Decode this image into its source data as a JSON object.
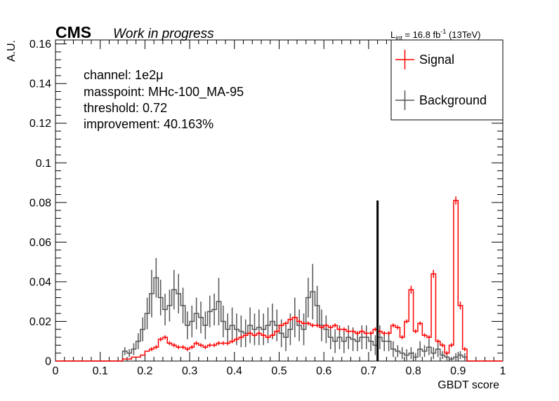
{
  "header": {
    "experiment": "CMS",
    "status": "Work in progress",
    "lumi_prefix": "L",
    "lumi_sub": "int",
    "lumi_value": " = 16.8 fb",
    "lumi_sup": "-1",
    "lumi_energy": " (13TeV)"
  },
  "info": {
    "channel": "channel: 1e2μ",
    "masspoint": "masspoint: MHc-100_MA-95",
    "threshold": "threshold: 0.72",
    "improvement": "improvement: 40.163%"
  },
  "colors": {
    "signal": "#ff0000",
    "background": "#555555",
    "threshold_line": "#000000"
  },
  "chart_data": {
    "type": "histogram",
    "xlabel": "GBDT score",
    "ylabel": "A.U.",
    "xlim": [
      0,
      1
    ],
    "ylim": [
      0,
      0.162
    ],
    "x_ticks": [
      "0",
      "0.1",
      "0.2",
      "0.3",
      "0.4",
      "0.5",
      "0.6",
      "0.7",
      "0.8",
      "0.9",
      "1"
    ],
    "y_ticks": [
      "0",
      "0.02",
      "0.04",
      "0.06",
      "0.08",
      "0.1",
      "0.12",
      "0.14",
      "0.16"
    ],
    "threshold": {
      "x": 0.72,
      "y_top": 0.081
    },
    "legend": {
      "position": "top-right",
      "entries": [
        "Signal",
        "Background"
      ]
    },
    "series": [
      {
        "name": "Signal",
        "x_start": 0.15,
        "bin_width": 0.01,
        "values": [
          0.001,
          0.001,
          0.002,
          0.002,
          0.003,
          0.005,
          0.006,
          0.007,
          0.011,
          0.012,
          0.009,
          0.008,
          0.007,
          0.007,
          0.006,
          0.007,
          0.009,
          0.008,
          0.007,
          0.008,
          0.008,
          0.009,
          0.009,
          0.009,
          0.01,
          0.011,
          0.012,
          0.013,
          0.014,
          0.013,
          0.014,
          0.013,
          0.012,
          0.013,
          0.015,
          0.018,
          0.019,
          0.021,
          0.022,
          0.02,
          0.019,
          0.019,
          0.018,
          0.018,
          0.017,
          0.018,
          0.017,
          0.018,
          0.016,
          0.016,
          0.015,
          0.015,
          0.014,
          0.015,
          0.014,
          0.014,
          0.016,
          0.015,
          0.014,
          0.014,
          0.018,
          0.017,
          0.012,
          0.02,
          0.036,
          0.015,
          0.019,
          0.013,
          0.012,
          0.044,
          0.01,
          0.008,
          0.004,
          0.008,
          0.081,
          0.028,
          0.006
        ],
        "errors": [
          0,
          0,
          0,
          0,
          0,
          0,
          0.001,
          0.001,
          0.001,
          0.001,
          0.001,
          0.001,
          0.001,
          0.001,
          0.001,
          0.001,
          0.001,
          0.001,
          0.001,
          0.001,
          0.001,
          0.001,
          0.001,
          0.001,
          0.001,
          0.001,
          0.001,
          0.001,
          0.001,
          0.001,
          0.001,
          0.001,
          0.001,
          0.001,
          0.001,
          0.001,
          0.001,
          0.001,
          0.001,
          0.001,
          0.001,
          0.001,
          0.001,
          0.001,
          0.001,
          0.001,
          0.001,
          0.001,
          0.001,
          0.001,
          0.001,
          0.001,
          0.001,
          0.001,
          0.001,
          0.001,
          0.001,
          0.001,
          0.001,
          0.001,
          0.001,
          0.001,
          0.001,
          0.001,
          0.002,
          0.001,
          0.001,
          0.001,
          0.001,
          0.002,
          0.001,
          0.001,
          0.001,
          0.001,
          0.002,
          0.002,
          0.001
        ]
      },
      {
        "name": "Background",
        "x_start": 0.15,
        "bin_width": 0.01,
        "values": [
          0.005,
          0.004,
          0.006,
          0.01,
          0.016,
          0.024,
          0.034,
          0.042,
          0.032,
          0.026,
          0.028,
          0.036,
          0.034,
          0.028,
          0.018,
          0.02,
          0.024,
          0.022,
          0.018,
          0.025,
          0.026,
          0.03,
          0.02,
          0.016,
          0.018,
          0.016,
          0.015,
          0.014,
          0.018,
          0.016,
          0.017,
          0.016,
          0.018,
          0.02,
          0.018,
          0.014,
          0.012,
          0.016,
          0.022,
          0.018,
          0.016,
          0.032,
          0.035,
          0.028,
          0.018,
          0.016,
          0.012,
          0.01,
          0.012,
          0.01,
          0.012,
          0.011,
          0.01,
          0.012,
          0.012,
          0.01,
          0.008,
          0.012,
          0.01,
          0.01,
          0.006,
          0.005,
          0.004,
          0.003,
          0.004,
          0.002,
          0.006,
          0.005,
          0.007,
          0.004,
          0.006,
          0.003,
          0.002,
          0.001,
          0.002,
          0.003,
          0.002
        ],
        "errors": [
          0.002,
          0.002,
          0.003,
          0.004,
          0.006,
          0.008,
          0.012,
          0.01,
          0.009,
          0.008,
          0.008,
          0.01,
          0.01,
          0.009,
          0.007,
          0.008,
          0.008,
          0.008,
          0.007,
          0.008,
          0.008,
          0.012,
          0.008,
          0.008,
          0.009,
          0.008,
          0.008,
          0.007,
          0.009,
          0.008,
          0.009,
          0.008,
          0.009,
          0.009,
          0.008,
          0.007,
          0.007,
          0.008,
          0.01,
          0.008,
          0.008,
          0.01,
          0.014,
          0.01,
          0.008,
          0.007,
          0.006,
          0.006,
          0.006,
          0.006,
          0.006,
          0.006,
          0.005,
          0.006,
          0.006,
          0.005,
          0.005,
          0.006,
          0.005,
          0.005,
          0.004,
          0.003,
          0.003,
          0.003,
          0.003,
          0.002,
          0.004,
          0.003,
          0.004,
          0.003,
          0.004,
          0.002,
          0.002,
          0.001,
          0.002,
          0.002,
          0.002
        ]
      }
    ]
  }
}
